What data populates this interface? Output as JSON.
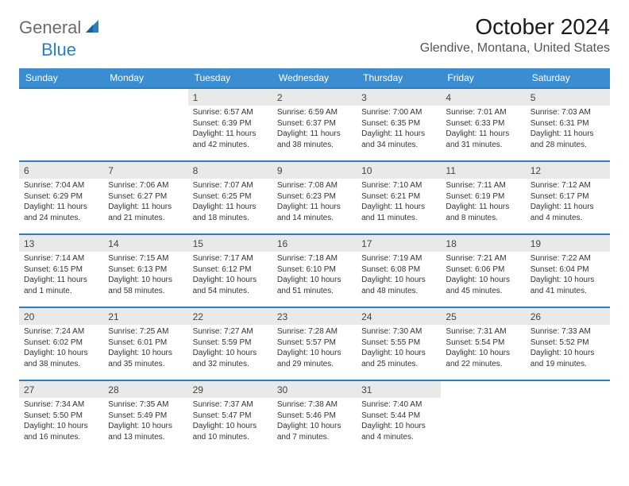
{
  "brand": {
    "general": "General",
    "blue": "Blue"
  },
  "title": "October 2024",
  "location": "Glendive, Montana, United States",
  "colors": {
    "header_bg": "#3b8dd1",
    "row_border": "#2a7fc4",
    "shade_bg": "#e9e9e9",
    "text": "#333333",
    "logo_gray": "#6b6b6b",
    "logo_blue": "#2a7fc4"
  },
  "weekdays": [
    "Sunday",
    "Monday",
    "Tuesday",
    "Wednesday",
    "Thursday",
    "Friday",
    "Saturday"
  ],
  "weeks": [
    [
      null,
      null,
      {
        "n": "1",
        "sr": "Sunrise: 6:57 AM",
        "ss": "Sunset: 6:39 PM",
        "dl": "Daylight: 11 hours and 42 minutes."
      },
      {
        "n": "2",
        "sr": "Sunrise: 6:59 AM",
        "ss": "Sunset: 6:37 PM",
        "dl": "Daylight: 11 hours and 38 minutes."
      },
      {
        "n": "3",
        "sr": "Sunrise: 7:00 AM",
        "ss": "Sunset: 6:35 PM",
        "dl": "Daylight: 11 hours and 34 minutes."
      },
      {
        "n": "4",
        "sr": "Sunrise: 7:01 AM",
        "ss": "Sunset: 6:33 PM",
        "dl": "Daylight: 11 hours and 31 minutes."
      },
      {
        "n": "5",
        "sr": "Sunrise: 7:03 AM",
        "ss": "Sunset: 6:31 PM",
        "dl": "Daylight: 11 hours and 28 minutes."
      }
    ],
    [
      {
        "n": "6",
        "sr": "Sunrise: 7:04 AM",
        "ss": "Sunset: 6:29 PM",
        "dl": "Daylight: 11 hours and 24 minutes."
      },
      {
        "n": "7",
        "sr": "Sunrise: 7:06 AM",
        "ss": "Sunset: 6:27 PM",
        "dl": "Daylight: 11 hours and 21 minutes."
      },
      {
        "n": "8",
        "sr": "Sunrise: 7:07 AM",
        "ss": "Sunset: 6:25 PM",
        "dl": "Daylight: 11 hours and 18 minutes."
      },
      {
        "n": "9",
        "sr": "Sunrise: 7:08 AM",
        "ss": "Sunset: 6:23 PM",
        "dl": "Daylight: 11 hours and 14 minutes."
      },
      {
        "n": "10",
        "sr": "Sunrise: 7:10 AM",
        "ss": "Sunset: 6:21 PM",
        "dl": "Daylight: 11 hours and 11 minutes."
      },
      {
        "n": "11",
        "sr": "Sunrise: 7:11 AM",
        "ss": "Sunset: 6:19 PM",
        "dl": "Daylight: 11 hours and 8 minutes."
      },
      {
        "n": "12",
        "sr": "Sunrise: 7:12 AM",
        "ss": "Sunset: 6:17 PM",
        "dl": "Daylight: 11 hours and 4 minutes."
      }
    ],
    [
      {
        "n": "13",
        "sr": "Sunrise: 7:14 AM",
        "ss": "Sunset: 6:15 PM",
        "dl": "Daylight: 11 hours and 1 minute."
      },
      {
        "n": "14",
        "sr": "Sunrise: 7:15 AM",
        "ss": "Sunset: 6:13 PM",
        "dl": "Daylight: 10 hours and 58 minutes."
      },
      {
        "n": "15",
        "sr": "Sunrise: 7:17 AM",
        "ss": "Sunset: 6:12 PM",
        "dl": "Daylight: 10 hours and 54 minutes."
      },
      {
        "n": "16",
        "sr": "Sunrise: 7:18 AM",
        "ss": "Sunset: 6:10 PM",
        "dl": "Daylight: 10 hours and 51 minutes."
      },
      {
        "n": "17",
        "sr": "Sunrise: 7:19 AM",
        "ss": "Sunset: 6:08 PM",
        "dl": "Daylight: 10 hours and 48 minutes."
      },
      {
        "n": "18",
        "sr": "Sunrise: 7:21 AM",
        "ss": "Sunset: 6:06 PM",
        "dl": "Daylight: 10 hours and 45 minutes."
      },
      {
        "n": "19",
        "sr": "Sunrise: 7:22 AM",
        "ss": "Sunset: 6:04 PM",
        "dl": "Daylight: 10 hours and 41 minutes."
      }
    ],
    [
      {
        "n": "20",
        "sr": "Sunrise: 7:24 AM",
        "ss": "Sunset: 6:02 PM",
        "dl": "Daylight: 10 hours and 38 minutes."
      },
      {
        "n": "21",
        "sr": "Sunrise: 7:25 AM",
        "ss": "Sunset: 6:01 PM",
        "dl": "Daylight: 10 hours and 35 minutes."
      },
      {
        "n": "22",
        "sr": "Sunrise: 7:27 AM",
        "ss": "Sunset: 5:59 PM",
        "dl": "Daylight: 10 hours and 32 minutes."
      },
      {
        "n": "23",
        "sr": "Sunrise: 7:28 AM",
        "ss": "Sunset: 5:57 PM",
        "dl": "Daylight: 10 hours and 29 minutes."
      },
      {
        "n": "24",
        "sr": "Sunrise: 7:30 AM",
        "ss": "Sunset: 5:55 PM",
        "dl": "Daylight: 10 hours and 25 minutes."
      },
      {
        "n": "25",
        "sr": "Sunrise: 7:31 AM",
        "ss": "Sunset: 5:54 PM",
        "dl": "Daylight: 10 hours and 22 minutes."
      },
      {
        "n": "26",
        "sr": "Sunrise: 7:33 AM",
        "ss": "Sunset: 5:52 PM",
        "dl": "Daylight: 10 hours and 19 minutes."
      }
    ],
    [
      {
        "n": "27",
        "sr": "Sunrise: 7:34 AM",
        "ss": "Sunset: 5:50 PM",
        "dl": "Daylight: 10 hours and 16 minutes."
      },
      {
        "n": "28",
        "sr": "Sunrise: 7:35 AM",
        "ss": "Sunset: 5:49 PM",
        "dl": "Daylight: 10 hours and 13 minutes."
      },
      {
        "n": "29",
        "sr": "Sunrise: 7:37 AM",
        "ss": "Sunset: 5:47 PM",
        "dl": "Daylight: 10 hours and 10 minutes."
      },
      {
        "n": "30",
        "sr": "Sunrise: 7:38 AM",
        "ss": "Sunset: 5:46 PM",
        "dl": "Daylight: 10 hours and 7 minutes."
      },
      {
        "n": "31",
        "sr": "Sunrise: 7:40 AM",
        "ss": "Sunset: 5:44 PM",
        "dl": "Daylight: 10 hours and 4 minutes."
      },
      null,
      null
    ]
  ]
}
